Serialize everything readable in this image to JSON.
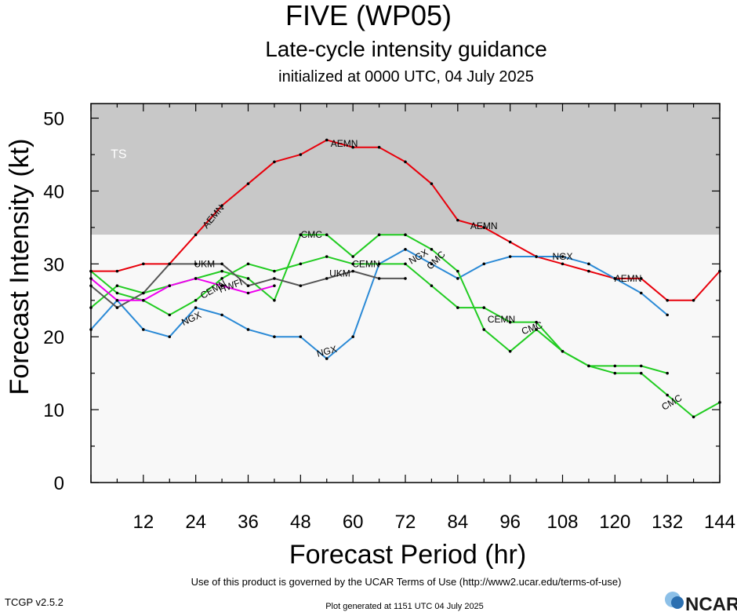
{
  "header": {
    "title": "FIVE (WP05)",
    "subtitle": "Late-cycle intensity guidance",
    "init_line": "initialized at 0000 UTC, 04 July 2025"
  },
  "footer": {
    "terms": "Use of this product is governed by the UCAR Terms of Use (http://www2.ucar.edu/terms-of-use)",
    "version": "TCGP v2.5.2",
    "generated": "Plot generated at 1151 UTC   04 July 2025",
    "logo_text": "NCAR"
  },
  "chart_data": {
    "type": "line",
    "xlabel": "Forecast Period (hr)",
    "ylabel": "Forecast Intensity (kt)",
    "xlim": [
      0,
      144
    ],
    "ylim": [
      0,
      52
    ],
    "xticks": [
      "12",
      "24",
      "36",
      "48",
      "60",
      "72",
      "84",
      "96",
      "108",
      "120",
      "132",
      "144"
    ],
    "yticks": [
      "0",
      "10",
      "20",
      "30",
      "40",
      "50"
    ],
    "bands": [
      {
        "label": "TS",
        "from": 34,
        "to": 52,
        "color": "#c8c8c8"
      },
      {
        "label": "",
        "from": 0,
        "to": 34,
        "color": "#f8f8f8"
      }
    ],
    "series": [
      {
        "name": "AEMN",
        "color": "#e8000b",
        "x": [
          0,
          6,
          12,
          18,
          24,
          30,
          36,
          42,
          48,
          54,
          60,
          66,
          72,
          78,
          84,
          90,
          96,
          102,
          108,
          114,
          120,
          126,
          132,
          138,
          144
        ],
        "y": [
          29,
          29,
          30,
          30,
          34,
          38,
          41,
          44,
          45,
          47,
          46,
          46,
          44,
          41,
          36,
          35,
          33,
          31,
          30,
          29,
          28,
          28,
          25,
          25,
          29
        ],
        "labels": [
          {
            "x": 28,
            "y": 36.5,
            "angle": -50
          },
          {
            "x": 58,
            "y": 46.5,
            "angle": 0
          },
          {
            "x": 90,
            "y": 35.2,
            "angle": 0
          },
          {
            "x": 123,
            "y": 28,
            "angle": 0
          }
        ]
      },
      {
        "name": "NGX",
        "color": "#2b8ad6",
        "x": [
          0,
          6,
          12,
          18,
          24,
          30,
          36,
          42,
          48,
          54,
          60,
          66,
          72,
          78,
          84,
          90,
          96,
          102,
          108,
          114,
          120,
          126,
          132
        ],
        "y": [
          21,
          25,
          21,
          20,
          24,
          23,
          21,
          20,
          20,
          17,
          20,
          30,
          32,
          30,
          28,
          30,
          31,
          31,
          31,
          30,
          28,
          26,
          23
        ],
        "labels": [
          {
            "x": 23,
            "y": 22.5,
            "angle": -25
          },
          {
            "x": 54,
            "y": 18,
            "angle": -15
          },
          {
            "x": 75,
            "y": 31,
            "angle": -30
          },
          {
            "x": 108,
            "y": 31,
            "angle": 0
          }
        ]
      },
      {
        "name": "CMC",
        "color": "#22cc22",
        "x": [
          0,
          6,
          12,
          18,
          24,
          30,
          36,
          42,
          48,
          54,
          60,
          66,
          72,
          78,
          84,
          90,
          96,
          102,
          108,
          114,
          120,
          126,
          132,
          138,
          144
        ],
        "y": [
          24,
          27,
          26,
          27,
          28,
          29,
          28,
          25,
          34,
          34,
          31,
          34,
          34,
          32,
          29,
          21,
          18,
          21,
          18,
          16,
          15,
          15,
          12,
          9,
          11
        ],
        "labels": [
          {
            "x": 50.5,
            "y": 34,
            "angle": 0
          },
          {
            "x": 79,
            "y": 30.5,
            "angle": -45
          },
          {
            "x": 101,
            "y": 21.2,
            "angle": -20
          },
          {
            "x": 133,
            "y": 11,
            "angle": -30
          }
        ]
      },
      {
        "name": "CEMN",
        "color": "#22cc22",
        "x": [
          0,
          6,
          12,
          18,
          24,
          30,
          36,
          42,
          48,
          54,
          60,
          66,
          72,
          78,
          84,
          90,
          96,
          102,
          108,
          114,
          120,
          126,
          132
        ],
        "y": [
          29,
          26,
          25,
          23,
          25,
          28,
          30,
          29,
          30,
          31,
          30,
          30,
          30,
          27,
          24,
          24,
          22,
          22,
          18,
          16,
          16,
          16,
          15
        ],
        "labels": [
          {
            "x": 63,
            "y": 30,
            "angle": 0
          },
          {
            "x": 94,
            "y": 22.4,
            "angle": 0
          },
          {
            "x": 28,
            "y": 26.5,
            "angle": -30
          }
        ]
      },
      {
        "name": "UKM",
        "color": "#555555",
        "x": [
          0,
          6,
          12,
          18,
          24,
          30,
          36,
          42,
          48,
          54,
          60,
          66,
          72
        ],
        "y": [
          27,
          24,
          26,
          30,
          30,
          30,
          27,
          28,
          27,
          28,
          29,
          28,
          28
        ],
        "labels": [
          {
            "x": 26,
            "y": 30,
            "angle": 0
          },
          {
            "x": 57,
            "y": 28.7,
            "angle": 0
          }
        ]
      },
      {
        "name": "HWFI",
        "color": "#ee00ee",
        "x": [
          0,
          6,
          12,
          18,
          24,
          30,
          36,
          42
        ],
        "y": [
          28,
          25,
          25,
          27,
          28,
          27,
          26,
          27
        ],
        "labels": [
          {
            "x": 32,
            "y": 27,
            "angle": -20
          }
        ]
      }
    ]
  }
}
